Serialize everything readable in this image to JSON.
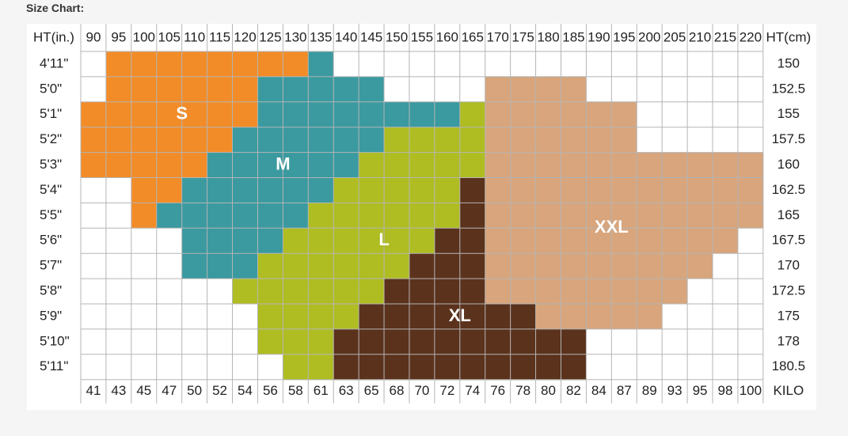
{
  "page": {
    "title": "Size Chart:"
  },
  "colors": {
    "S": "#f28c28",
    "M": "#3a9aa0",
    "L": "#afbd22",
    "XL": "#5b321c",
    "XXL": "#d8a57c",
    "empty": "#ffffff",
    "grid": "#b5b5b5"
  },
  "chart_data": {
    "type": "heatmap",
    "title": "Size Chart:",
    "x_header": "HT(in.)",
    "right_header": "HT(cm)",
    "bottom_right_label": "KILO",
    "lbs": [
      "90",
      "95",
      "100",
      "105",
      "110",
      "115",
      "120",
      "125",
      "130",
      "135",
      "140",
      "145",
      "150",
      "155",
      "160",
      "165",
      "170",
      "175",
      "180",
      "185",
      "190",
      "195",
      "200",
      "205",
      "210",
      "215",
      "220"
    ],
    "kilo": [
      "41",
      "43",
      "45",
      "47",
      "50",
      "52",
      "54",
      "56",
      "58",
      "61",
      "63",
      "65",
      "68",
      "70",
      "72",
      "74",
      "76",
      "78",
      "80",
      "82",
      "84",
      "87",
      "89",
      "93",
      "95",
      "98",
      "100"
    ],
    "height_in": [
      "4'11\"",
      "5'0\"",
      "5'1\"",
      "5'2\"",
      "5'3\"",
      "5'4\"",
      "5'5\"",
      "5'6\"",
      "5'7\"",
      "5'8\"",
      "5'9\"",
      "5'10\"",
      "5'11\""
    ],
    "height_cm": [
      "150",
      "152.5",
      "155",
      "157.5",
      "160",
      "162.5",
      "165",
      "167.5",
      "170",
      "172.5",
      "175",
      "178",
      "180.5"
    ],
    "grid": [
      [
        "",
        "S",
        "S",
        "S",
        "S",
        "S",
        "S",
        "S",
        "S",
        "M",
        "",
        "",
        "",
        "",
        "",
        "",
        "",
        "",
        "",
        "",
        "",
        "",
        "",
        "",
        "",
        "",
        ""
      ],
      [
        "",
        "S",
        "S",
        "S",
        "S",
        "S",
        "S",
        "M",
        "M",
        "M",
        "M",
        "M",
        "",
        "",
        "",
        "",
        "XXL",
        "XXL",
        "XXL",
        "XXL",
        "",
        "",
        "",
        "",
        "",
        "",
        ""
      ],
      [
        "S",
        "S",
        "S",
        "S",
        "S",
        "S",
        "S",
        "M",
        "M",
        "M",
        "M",
        "M",
        "M",
        "M",
        "M",
        "L",
        "XXL",
        "XXL",
        "XXL",
        "XXL",
        "XXL",
        "XXL",
        "",
        "",
        "",
        "",
        ""
      ],
      [
        "S",
        "S",
        "S",
        "S",
        "S",
        "S",
        "M",
        "M",
        "M",
        "M",
        "M",
        "M",
        "L",
        "L",
        "L",
        "L",
        "XXL",
        "XXL",
        "XXL",
        "XXL",
        "XXL",
        "XXL",
        "",
        "",
        "",
        "",
        ""
      ],
      [
        "S",
        "S",
        "S",
        "S",
        "S",
        "M",
        "M",
        "M",
        "M",
        "M",
        "M",
        "L",
        "L",
        "L",
        "L",
        "L",
        "XXL",
        "XXL",
        "XXL",
        "XXL",
        "XXL",
        "XXL",
        "XXL",
        "XXL",
        "XXL",
        "XXL",
        "XXL"
      ],
      [
        "",
        "",
        "S",
        "S",
        "M",
        "M",
        "M",
        "M",
        "M",
        "M",
        "L",
        "L",
        "L",
        "L",
        "L",
        "XL",
        "XXL",
        "XXL",
        "XXL",
        "XXL",
        "XXL",
        "XXL",
        "XXL",
        "XXL",
        "XXL",
        "XXL",
        "XXL"
      ],
      [
        "",
        "",
        "S",
        "M",
        "M",
        "M",
        "M",
        "M",
        "M",
        "L",
        "L",
        "L",
        "L",
        "L",
        "L",
        "XL",
        "XXL",
        "XXL",
        "XXL",
        "XXL",
        "XXL",
        "XXL",
        "XXL",
        "XXL",
        "XXL",
        "XXL",
        "XXL"
      ],
      [
        "",
        "",
        "",
        "",
        "M",
        "M",
        "M",
        "M",
        "L",
        "L",
        "L",
        "L",
        "L",
        "L",
        "XL",
        "XL",
        "XXL",
        "XXL",
        "XXL",
        "XXL",
        "XXL",
        "XXL",
        "XXL",
        "XXL",
        "XXL",
        "XXL",
        ""
      ],
      [
        "",
        "",
        "",
        "",
        "M",
        "M",
        "M",
        "L",
        "L",
        "L",
        "L",
        "L",
        "L",
        "XL",
        "XL",
        "XL",
        "XXL",
        "XXL",
        "XXL",
        "XXL",
        "XXL",
        "XXL",
        "XXL",
        "XXL",
        "XXL",
        "",
        ""
      ],
      [
        "",
        "",
        "",
        "",
        "",
        "",
        "L",
        "L",
        "L",
        "L",
        "L",
        "L",
        "XL",
        "XL",
        "XL",
        "XL",
        "XXL",
        "XXL",
        "XXL",
        "XXL",
        "XXL",
        "XXL",
        "XXL",
        "XXL",
        "",
        "",
        ""
      ],
      [
        "",
        "",
        "",
        "",
        "",
        "",
        "",
        "L",
        "L",
        "L",
        "L",
        "XL",
        "XL",
        "XL",
        "XL",
        "XL",
        "XL",
        "XL",
        "XXL",
        "XXL",
        "XXL",
        "XXL",
        "XXL",
        "",
        "",
        "",
        ""
      ],
      [
        "",
        "",
        "",
        "",
        "",
        "",
        "",
        "L",
        "L",
        "L",
        "XL",
        "XL",
        "XL",
        "XL",
        "XL",
        "XL",
        "XL",
        "XL",
        "XL",
        "XL",
        "",
        "",
        "",
        "",
        "",
        "",
        ""
      ],
      [
        "",
        "",
        "",
        "",
        "",
        "",
        "",
        "",
        "L",
        "L",
        "XL",
        "XL",
        "XL",
        "XL",
        "XL",
        "XL",
        "XL",
        "XL",
        "XL",
        "XL",
        "",
        "",
        "",
        "",
        "",
        "",
        ""
      ]
    ],
    "zone_labels": [
      {
        "text": "S",
        "row": 2,
        "col": 3.5
      },
      {
        "text": "M",
        "row": 4,
        "col": 7.5
      },
      {
        "text": "L",
        "row": 7,
        "col": 11.5
      },
      {
        "text": "XL",
        "row": 10,
        "col": 14.5
      },
      {
        "text": "XXL",
        "row": 6.5,
        "col": 20.5
      }
    ]
  }
}
